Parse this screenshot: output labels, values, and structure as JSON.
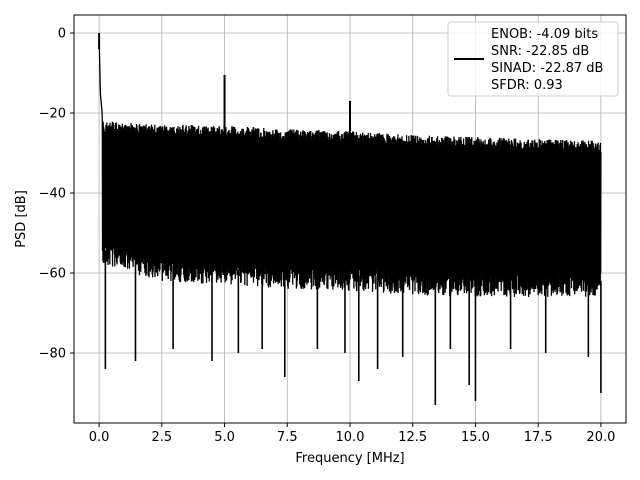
{
  "chart_data": {
    "type": "line",
    "title": "",
    "xlabel": "Frequency [MHz]",
    "ylabel": "PSD [dB]",
    "xlim": [
      -1.0,
      21.0
    ],
    "ylim": [
      -97.5,
      4.5
    ],
    "x_ticks": [
      0.0,
      2.5,
      5.0,
      7.5,
      10.0,
      12.5,
      15.0,
      17.5,
      20.0
    ],
    "x_tick_labels": [
      "0.0",
      "2.5",
      "5.0",
      "7.5",
      "10.0",
      "12.5",
      "15.0",
      "17.5",
      "20.0"
    ],
    "y_ticks": [
      -80,
      -60,
      -40,
      -20,
      0
    ],
    "y_tick_labels": [
      "−80",
      "−60",
      "−40",
      "−20",
      "0"
    ],
    "grid": true,
    "legend_position": "top-right",
    "line_color": "#000000",
    "series": [
      {
        "name": "",
        "x_range": [
          0.0,
          20.0
        ],
        "upper_envelope": [
          [
            0.0,
            0
          ],
          [
            0.05,
            -15
          ],
          [
            0.15,
            -22
          ],
          [
            2.5,
            -23
          ],
          [
            5.0,
            -23
          ],
          [
            7.5,
            -24
          ],
          [
            10.0,
            -24.5
          ],
          [
            12.5,
            -25.5
          ],
          [
            15.0,
            -26
          ],
          [
            17.5,
            -26.5
          ],
          [
            20.0,
            -27
          ]
        ],
        "lower_envelope": [
          [
            0.0,
            -58
          ],
          [
            2.5,
            -62
          ],
          [
            5.0,
            -63
          ],
          [
            7.5,
            -64
          ],
          [
            10.0,
            -64.5
          ],
          [
            12.5,
            -65.5
          ],
          [
            15.0,
            -66
          ],
          [
            17.5,
            -66
          ],
          [
            20.0,
            -66
          ]
        ],
        "spikes": [
          [
            0.0,
            0
          ],
          [
            5.0,
            -10.5
          ],
          [
            10.0,
            -17
          ]
        ],
        "dips": [
          [
            0.25,
            -84
          ],
          [
            1.45,
            -82
          ],
          [
            2.95,
            -79
          ],
          [
            4.5,
            -82
          ],
          [
            5.55,
            -80
          ],
          [
            6.5,
            -79
          ],
          [
            7.4,
            -86
          ],
          [
            8.7,
            -79
          ],
          [
            9.8,
            -80
          ],
          [
            10.35,
            -87
          ],
          [
            11.1,
            -84
          ],
          [
            12.1,
            -81
          ],
          [
            13.4,
            -93
          ],
          [
            14.0,
            -79
          ],
          [
            14.75,
            -88
          ],
          [
            15.0,
            -92
          ],
          [
            16.4,
            -79
          ],
          [
            17.8,
            -80
          ],
          [
            19.5,
            -81
          ],
          [
            20.0,
            -90
          ]
        ]
      }
    ],
    "legend_text": [
      "ENOB: -4.09 bits",
      "SNR: -22.85 dB",
      "SINAD: -22.87 dB",
      "SFDR: 0.93"
    ]
  }
}
